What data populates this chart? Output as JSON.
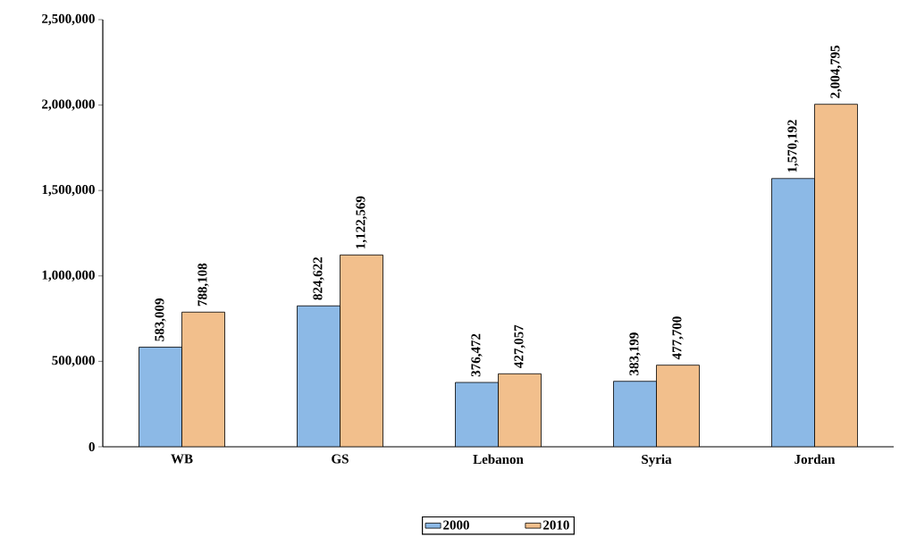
{
  "chart_data": {
    "type": "bar",
    "categories": [
      "WB",
      "GS",
      "Lebanon",
      "Syria",
      "Jordan"
    ],
    "series": [
      {
        "name": "2000",
        "color": "#8cb9e6",
        "values": [
          583009,
          824622,
          376472,
          383199,
          1570192
        ],
        "value_labels": [
          "583,009",
          "824,622",
          "376,472",
          "383,199",
          "1,570,192"
        ]
      },
      {
        "name": "2010",
        "color": "#f2bf8c",
        "values": [
          788108,
          1122569,
          427057,
          477700,
          2004795
        ],
        "value_labels": [
          "788,108",
          "1,122,569",
          "427,057",
          "477,700",
          "2,004,795"
        ]
      }
    ],
    "ylim": [
      0,
      2500000
    ],
    "yticks": [
      0,
      {
        "value": 500000,
        "label": "500,000"
      },
      {
        "value": 1000000,
        "label": "1,000,000"
      },
      {
        "value": 1500000,
        "label": "1,500,000"
      },
      {
        "value": 2000000,
        "label": "2,000,000"
      },
      {
        "value": 2500000,
        "label": "2,500,000"
      }
    ],
    "legend": "bottom",
    "grid": false
  }
}
